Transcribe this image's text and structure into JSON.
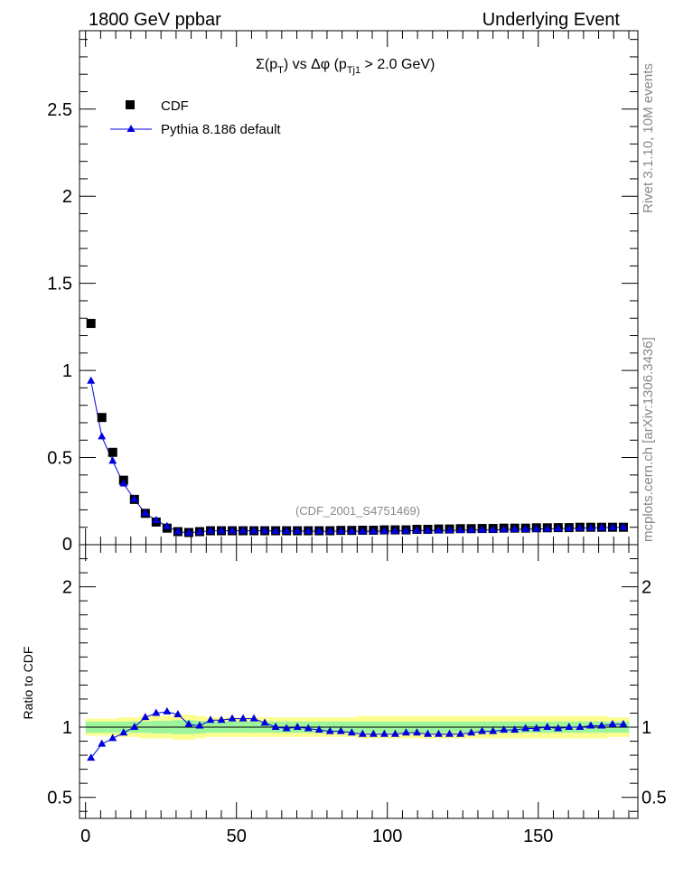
{
  "header": {
    "left": "1800 GeV ppbar",
    "right": "Underlying Event"
  },
  "side_labels": {
    "rivet": "Rivet 3.1.10, 10M events",
    "mcplots": "mcplots.cern.ch [arXiv:1306.3436]"
  },
  "colors": {
    "data": "#000000",
    "mc": "#0000dd",
    "band_inner": "#9cf59c",
    "band_outer": "#fbfd8f"
  },
  "chart_data": [
    {
      "type": "scatter",
      "title_parts": {
        "main": "Σ(p",
        "sub1": "T",
        "mid": ") vs Δφ (p",
        "sub2": "Tj1",
        "tail": " > 2.0 GeV)"
      },
      "watermark": "(CDF_2001_S4751469)",
      "xlim": [
        -2,
        183
      ],
      "ylim": [
        0,
        2.95
      ],
      "y_ticks": [
        0.5,
        1,
        1.5,
        2,
        2.5
      ],
      "y_tick_labels": [
        "0.5",
        "1",
        "1.5",
        "2",
        "2.5"
      ],
      "y_zero_label": "0",
      "legend_position": "top-left",
      "x": [
        1.8,
        5.4,
        9,
        12.6,
        16.2,
        19.8,
        23.4,
        27,
        30.6,
        34.2,
        37.8,
        41.4,
        45,
        48.6,
        52.2,
        55.8,
        59.4,
        63,
        66.6,
        70.2,
        73.8,
        77.4,
        81,
        84.6,
        88.2,
        91.8,
        95.4,
        99,
        102.6,
        106.2,
        109.8,
        113.4,
        117,
        120.6,
        124.2,
        127.8,
        131.4,
        135,
        138.6,
        142.2,
        145.8,
        149.4,
        153,
        156.6,
        160.2,
        163.8,
        167.4,
        171,
        174.6,
        178.2
      ],
      "series": [
        {
          "name": "CDF",
          "marker": "square",
          "values": [
            1.27,
            0.73,
            0.53,
            0.37,
            0.26,
            0.18,
            0.13,
            0.095,
            0.075,
            0.07,
            0.075,
            0.08,
            0.08,
            0.08,
            0.08,
            0.08,
            0.08,
            0.08,
            0.08,
            0.08,
            0.08,
            0.08,
            0.08,
            0.082,
            0.082,
            0.083,
            0.083,
            0.085,
            0.085,
            0.085,
            0.088,
            0.088,
            0.09,
            0.09,
            0.092,
            0.092,
            0.093,
            0.093,
            0.095,
            0.095,
            0.095,
            0.097,
            0.097,
            0.098,
            0.098,
            0.1,
            0.1,
            0.1,
            0.1,
            0.1
          ]
        },
        {
          "name": "Pythia 8.186 default",
          "marker": "triangle",
          "values": [
            0.94,
            0.62,
            0.48,
            0.35,
            0.26,
            0.18,
            0.14,
            0.105,
            0.075,
            0.068,
            0.074,
            0.08,
            0.08,
            0.08,
            0.08,
            0.08,
            0.08,
            0.078,
            0.078,
            0.078,
            0.078,
            0.077,
            0.077,
            0.078,
            0.077,
            0.077,
            0.077,
            0.078,
            0.079,
            0.08,
            0.081,
            0.081,
            0.081,
            0.082,
            0.083,
            0.084,
            0.085,
            0.085,
            0.087,
            0.088,
            0.089,
            0.09,
            0.091,
            0.092,
            0.093,
            0.095,
            0.096,
            0.098,
            0.099,
            0.1
          ]
        }
      ]
    },
    {
      "type": "scatter",
      "ylabel": "Ratio to CDF",
      "xlim": [
        -2,
        183
      ],
      "ylim": [
        0.35,
        2.3
      ],
      "x_ticks": [
        0,
        50,
        100,
        150
      ],
      "x_tick_labels": [
        "0",
        "50",
        "100",
        "150"
      ],
      "y_ticks": [
        0.5,
        1,
        2
      ],
      "y_tick_labels": [
        "0.5",
        "1",
        "2"
      ],
      "x": [
        1.8,
        5.4,
        9,
        12.6,
        16.2,
        19.8,
        23.4,
        27,
        30.6,
        34.2,
        37.8,
        41.4,
        45,
        48.6,
        52.2,
        55.8,
        59.4,
        63,
        66.6,
        70.2,
        73.8,
        77.4,
        81,
        84.6,
        88.2,
        91.8,
        95.4,
        99,
        102.6,
        106.2,
        109.8,
        113.4,
        117,
        120.6,
        124.2,
        127.8,
        131.4,
        135,
        138.6,
        142.2,
        145.8,
        149.4,
        153,
        156.6,
        160.2,
        163.8,
        167.4,
        171,
        174.6,
        178.2
      ],
      "band_inner": [
        0.04,
        0.04,
        0.04,
        0.04,
        0.04,
        0.04,
        0.045,
        0.045,
        0.05,
        0.05,
        0.045,
        0.04,
        0.04,
        0.04,
        0.04,
        0.04,
        0.04,
        0.04,
        0.04,
        0.04,
        0.04,
        0.04,
        0.04,
        0.04,
        0.04,
        0.04,
        0.04,
        0.04,
        0.04,
        0.04,
        0.04,
        0.04,
        0.04,
        0.04,
        0.04,
        0.04,
        0.04,
        0.04,
        0.04,
        0.04,
        0.04,
        0.04,
        0.04,
        0.04,
        0.04,
        0.04,
        0.04,
        0.04,
        0.04,
        0.04
      ],
      "band_outer": [
        0.06,
        0.06,
        0.06,
        0.07,
        0.07,
        0.08,
        0.08,
        0.08,
        0.09,
        0.09,
        0.08,
        0.07,
        0.07,
        0.07,
        0.07,
        0.07,
        0.07,
        0.07,
        0.07,
        0.07,
        0.07,
        0.07,
        0.07,
        0.07,
        0.07,
        0.08,
        0.08,
        0.08,
        0.08,
        0.08,
        0.08,
        0.08,
        0.08,
        0.08,
        0.08,
        0.08,
        0.08,
        0.08,
        0.08,
        0.08,
        0.08,
        0.08,
        0.08,
        0.08,
        0.08,
        0.08,
        0.08,
        0.08,
        0.07,
        0.07
      ],
      "series": [
        {
          "name": "Pythia 8.186 default",
          "values": [
            0.78,
            0.88,
            0.92,
            0.96,
            1.0,
            1.07,
            1.1,
            1.11,
            1.09,
            1.02,
            1.01,
            1.05,
            1.05,
            1.06,
            1.06,
            1.06,
            1.03,
            1.0,
            0.99,
            1.0,
            0.99,
            0.98,
            0.97,
            0.97,
            0.96,
            0.95,
            0.95,
            0.95,
            0.95,
            0.96,
            0.96,
            0.95,
            0.95,
            0.95,
            0.95,
            0.96,
            0.97,
            0.97,
            0.98,
            0.98,
            0.99,
            0.99,
            1.0,
            0.99,
            1.0,
            1.0,
            1.01,
            1.01,
            1.02,
            1.02
          ]
        }
      ]
    }
  ]
}
